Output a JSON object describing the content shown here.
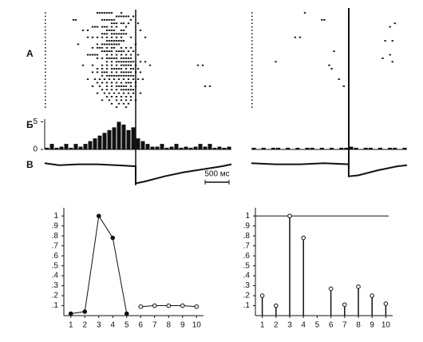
{
  "panel_labels": [
    "А",
    "Б",
    "В"
  ],
  "scale_bar_label": "500 мс",
  "chart_data": [
    {
      "type": "raster",
      "xlim": [
        -1900,
        2000
      ],
      "rows": [
        [
          -800,
          -750,
          -700,
          -650,
          -600,
          -550,
          -500,
          -300
        ],
        [
          -400,
          -350,
          -300,
          -250,
          -200,
          -150,
          -50
        ],
        [
          -1300,
          -1250,
          -700,
          -650,
          -600,
          -550,
          -500,
          -450,
          -100
        ],
        [
          -500,
          -450,
          -400,
          -300,
          -250,
          -150,
          50
        ],
        [
          -900,
          -850,
          -800,
          -700,
          -650,
          -600,
          -500,
          -400,
          -200
        ],
        [
          -1100,
          -1000,
          -600,
          -550,
          -500,
          -450,
          -300,
          -250,
          100
        ],
        [
          -700,
          -650,
          -600,
          -500,
          -450,
          -400,
          -350,
          -300,
          -250,
          -200
        ],
        [
          -1000,
          -900,
          -800,
          -700,
          -600,
          -500,
          -400,
          -300,
          -100,
          200
        ],
        [
          -600,
          -550,
          -500,
          -450,
          -400,
          -350,
          -300,
          -250
        ],
        [
          -1200,
          -800,
          -700,
          -650,
          -600,
          -550,
          -500,
          -450,
          -400,
          -350,
          0
        ],
        [
          -900,
          -800,
          -750,
          -700,
          -600,
          -500,
          -450,
          -300,
          -200,
          -100
        ],
        [
          -700,
          -650,
          -600,
          -550,
          -500,
          -400,
          -350,
          -300,
          -250,
          -150,
          -50
        ],
        [
          -1000,
          -950,
          -900,
          -850,
          -800,
          -600,
          -500,
          -400,
          -300,
          -200,
          -100,
          50
        ],
        [
          -800,
          -700,
          -600,
          -550,
          -500,
          -450,
          -400,
          -300,
          -250,
          -200,
          -150,
          -100
        ],
        [
          -600,
          -500,
          -400,
          -350,
          -300,
          -250,
          -200,
          -150,
          -100,
          -50,
          100,
          200
        ],
        [
          -1100,
          -900,
          -700,
          -600,
          -500,
          -400,
          -300,
          -250,
          -200,
          -150,
          -100,
          0,
          300,
          1300,
          1400
        ],
        [
          -800,
          -700,
          -600,
          -500,
          -450,
          -400,
          -350,
          -300,
          -200,
          -100,
          -50,
          50
        ],
        [
          -900,
          -800,
          -700,
          -650,
          -600,
          -500,
          -400,
          -300,
          -250,
          -200,
          -150,
          -100,
          0,
          100
        ],
        [
          -700,
          -600,
          -550,
          -500,
          -450,
          -400,
          -350,
          -300,
          -250,
          -200,
          -150,
          -100,
          -50
        ],
        [
          -1000,
          -850,
          -750,
          -650,
          -550,
          -450,
          -350,
          -250,
          -150,
          -50,
          50,
          150
        ],
        [
          -800,
          -700,
          -600,
          -500,
          -400,
          -300,
          -200,
          -150,
          -100,
          0
        ],
        [
          -900,
          -750,
          -600,
          -500,
          -400,
          -350,
          -300,
          -250,
          -200,
          -100,
          0,
          1450,
          1550
        ],
        [
          -700,
          -600,
          -500,
          -400,
          -300,
          -250,
          -200,
          -150,
          -100,
          -50
        ],
        [
          -800,
          -650,
          -550,
          -450,
          -350,
          -250,
          -150,
          -50,
          100
        ],
        [
          -600,
          -500,
          -400,
          -300,
          -200,
          -100
        ],
        [
          -700,
          -550,
          -400,
          -300,
          -200,
          -100,
          0
        ],
        [
          -500,
          -350,
          -250,
          -150
        ],
        [
          -400,
          -200
        ]
      ]
    },
    {
      "type": "raster",
      "xlim": [
        -2000,
        1200
      ],
      "rows": [
        [
          -900
        ],
        [],
        [
          -550,
          -500
        ],
        [
          950
        ],
        [
          850
        ],
        [],
        [],
        [
          -1100,
          -1000
        ],
        [
          750,
          900
        ],
        [],
        [],
        [
          -300
        ],
        [
          850
        ],
        [
          700
        ],
        [
          -1500,
          900
        ],
        [
          -400
        ],
        [
          -350
        ],
        [],
        [],
        [
          -200
        ],
        [],
        [
          -100
        ],
        [],
        [],
        [],
        [],
        [],
        []
      ]
    },
    {
      "type": "histogram",
      "xlim": [
        -1900,
        2000
      ],
      "ylim": [
        0,
        5.5
      ],
      "yticks": [
        0,
        5
      ],
      "bins": [
        -1900,
        -1800,
        -1700,
        -1600,
        -1500,
        -1400,
        -1300,
        -1200,
        -1100,
        -1000,
        -900,
        -800,
        -700,
        -600,
        -500,
        -400,
        -300,
        -200,
        -100,
        0,
        100,
        200,
        300,
        400,
        500,
        600,
        700,
        800,
        900,
        1000,
        1100,
        1200,
        1300,
        1400,
        1500,
        1600,
        1700,
        1800,
        1900,
        2000
      ],
      "values": [
        0.3,
        1,
        0.3,
        0.5,
        1,
        0.3,
        1,
        0.5,
        1,
        1.5,
        2,
        2.5,
        3,
        3.5,
        4,
        5,
        4.5,
        3.5,
        4,
        2,
        1.5,
        1,
        0.5,
        0.5,
        1,
        0.3,
        0.5,
        1,
        0.3,
        0.5,
        0.3,
        0.5,
        1,
        0.5,
        1,
        0.3,
        0.5,
        0.3,
        0.5
      ]
    },
    {
      "type": "histogram",
      "xlim": [
        -2000,
        1200
      ],
      "ylim": [
        0,
        5.5
      ],
      "bins": [
        -2000,
        -1900,
        -1800,
        -1700,
        -1600,
        -1500,
        -1400,
        -1300,
        -1200,
        -1100,
        -1000,
        -900,
        -800,
        -700,
        -600,
        -500,
        -400,
        -300,
        -200,
        -100,
        0,
        100,
        200,
        300,
        400,
        500,
        600,
        700,
        800,
        900,
        1000,
        1100,
        1200
      ],
      "values": [
        0.3,
        0,
        0.3,
        0,
        0.3,
        0.3,
        0,
        0.3,
        0,
        0.3,
        0,
        0.3,
        0.3,
        0,
        0.3,
        0,
        0.3,
        0,
        0.3,
        0.3,
        0.5,
        0.3,
        0,
        0.3,
        0.3,
        0,
        0.3,
        0,
        0.3,
        0.3,
        0,
        0.3
      ]
    },
    {
      "type": "trace",
      "xlim": [
        -1900,
        2000
      ],
      "ylim": [
        -2.2,
        0.5
      ],
      "x": [
        -1900,
        -1600,
        -1200,
        -800,
        -400,
        0,
        0,
        200,
        600,
        1000,
        1400,
        1800,
        2000
      ],
      "values": [
        0,
        -0.2,
        -0.1,
        -0.1,
        -0.2,
        -0.3,
        -2,
        -1.8,
        -1.3,
        -0.9,
        -0.6,
        -0.3,
        -0.1
      ]
    },
    {
      "type": "trace",
      "xlim": [
        -2000,
        1200
      ],
      "ylim": [
        -2.2,
        0.5
      ],
      "x": [
        -2000,
        -1500,
        -1000,
        -500,
        0,
        0,
        200,
        600,
        1000,
        1200
      ],
      "values": [
        0,
        -0.1,
        -0.1,
        0,
        -0.1,
        -1.3,
        -1.2,
        -0.7,
        -0.3,
        -0.2
      ]
    },
    {
      "type": "line",
      "xlim": [
        0.5,
        10.5
      ],
      "ylim": [
        0,
        1.05
      ],
      "xticks": [
        1,
        2,
        3,
        4,
        5,
        6,
        7,
        8,
        9,
        10
      ],
      "yticks": [
        {
          "value": 0.1,
          "label": ".1"
        },
        {
          "value": 0.2,
          "label": ".2"
        },
        {
          "value": 0.3,
          "label": ".3"
        },
        {
          "value": 0.4,
          "label": ".4"
        },
        {
          "value": 0.5,
          "label": ".5"
        },
        {
          "value": 0.6,
          "label": ".6"
        },
        {
          "value": 0.7,
          "label": ".7"
        },
        {
          "value": 0.8,
          "label": ".8"
        },
        {
          "value": 0.9,
          "label": ".9"
        },
        1
      ],
      "x": [
        1,
        2,
        3,
        4,
        5,
        6,
        7,
        8,
        9,
        10
      ],
      "series": [
        {
          "marker": "filled",
          "values": [
            0.02,
            0.04,
            1,
            0.78,
            0.02,
            null,
            null,
            null,
            null,
            null
          ]
        },
        {
          "marker": "open",
          "values": [
            null,
            null,
            null,
            null,
            null,
            0.09,
            0.1,
            0.1,
            0.1,
            0.09
          ]
        }
      ]
    },
    {
      "type": "stem",
      "xlim": [
        0.5,
        10.5
      ],
      "ylim": [
        0,
        1.05
      ],
      "hline": 1,
      "xticks": [
        1,
        2,
        3,
        4,
        5,
        6,
        7,
        8,
        9,
        10
      ],
      "yticks": [
        {
          "value": 0.1,
          "label": ".1"
        },
        {
          "value": 0.2,
          "label": ".2"
        },
        {
          "value": 0.3,
          "label": ".3"
        },
        {
          "value": 0.4,
          "label": ".4"
        },
        {
          "value": 0.5,
          "label": ".5"
        },
        {
          "value": 0.6,
          "label": ".6"
        },
        {
          "value": 0.7,
          "label": ".7"
        },
        {
          "value": 0.8,
          "label": ".8"
        },
        {
          "value": 0.9,
          "label": ".9"
        },
        1
      ],
      "x": [
        1,
        2,
        3,
        4,
        5,
        6,
        7,
        8,
        9,
        10
      ],
      "values": [
        0.2,
        0.1,
        1,
        0.78,
        null,
        0.27,
        0.11,
        0.29,
        0.2,
        0.12
      ]
    }
  ]
}
